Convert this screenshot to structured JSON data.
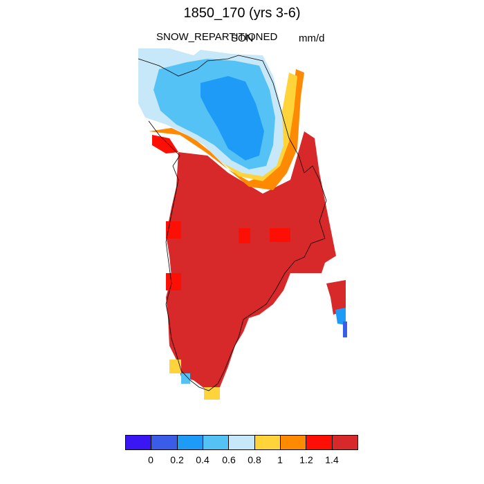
{
  "title": "1850_170 (yrs 3-6)",
  "left_label": "SNOW_REPARTITIONED",
  "center_label": "SON",
  "right_label": "mm/d",
  "colorbar": {
    "colors": [
      "#3b16f5",
      "#3a5ce6",
      "#1e9bf7",
      "#54c2f5",
      "#c7e8f8",
      "#fed43a",
      "#fe8a04",
      "#fe0f06",
      "#d7282a"
    ],
    "labels": [
      "0",
      "0.2",
      "0.4",
      "0.6",
      "0.8",
      "1",
      "1.2",
      "1.4"
    ]
  }
}
